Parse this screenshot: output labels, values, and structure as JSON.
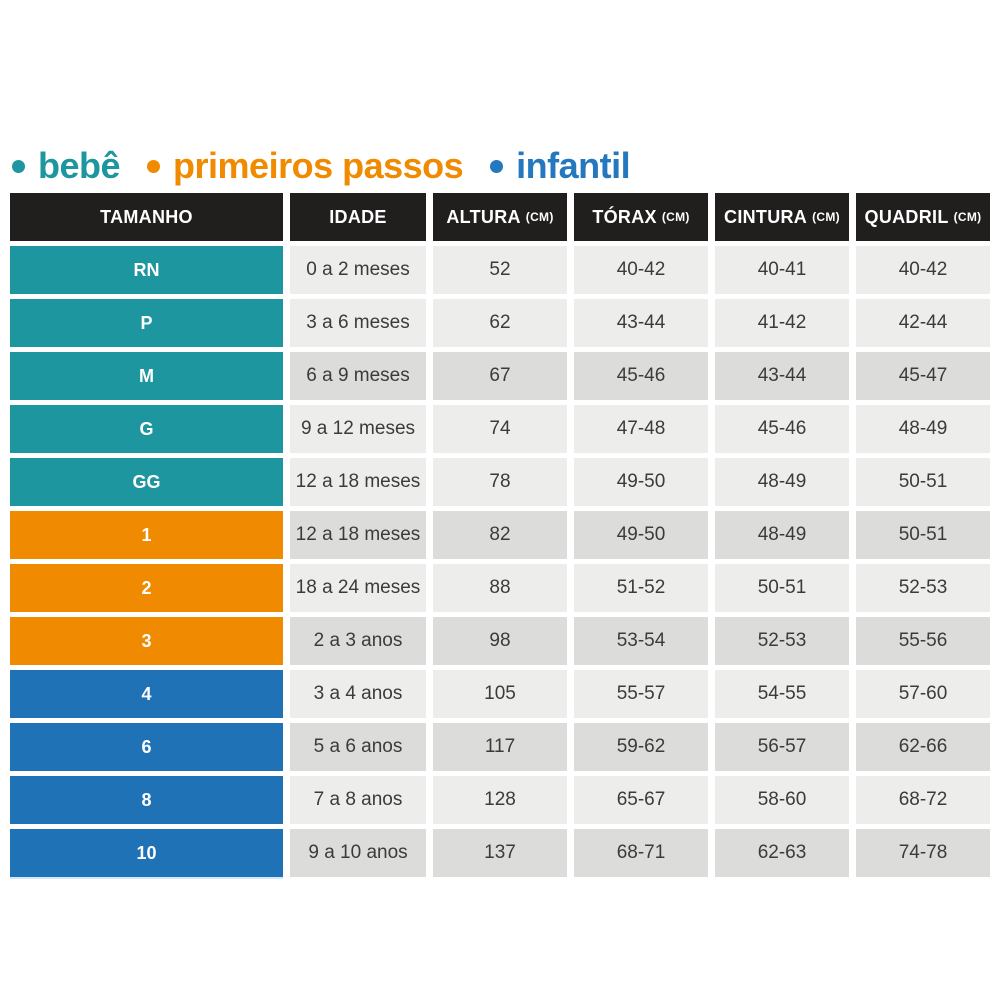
{
  "colors": {
    "teal": "#1E96A0",
    "orange": "#F08A00",
    "blue": "#1F72B5",
    "legend_blue": "#2478BE",
    "header_bg": "#211E1E",
    "row_light": "#EDEDEC",
    "row_dark": "#DCDCDB",
    "cell_text": "#3B3B3B"
  },
  "legend": {
    "items": [
      {
        "label": "bebê",
        "color": "#1E96A0"
      },
      {
        "label": "primeiros passos",
        "color": "#F08A00"
      },
      {
        "label": "infantil",
        "color": "#2478BE"
      }
    ]
  },
  "table": {
    "columns": [
      {
        "label": "TAMANHO",
        "unit": ""
      },
      {
        "label": "IDADE",
        "unit": ""
      },
      {
        "label": "ALTURA",
        "unit": "(CM)"
      },
      {
        "label": "TÓRAX",
        "unit": "(CM)"
      },
      {
        "label": "CINTURA",
        "unit": "(CM)"
      },
      {
        "label": "QUADRIL",
        "unit": "(CM)"
      }
    ],
    "rows": [
      {
        "size": "RN",
        "group": "bebê",
        "idade": "0 a 2 meses",
        "altura": "52",
        "torax": "40-42",
        "cintura": "40-41",
        "quadril": "40-42"
      },
      {
        "size": "P",
        "group": "bebê",
        "idade": "3 a 6 meses",
        "altura": "62",
        "torax": "43-44",
        "cintura": "41-42",
        "quadril": "42-44"
      },
      {
        "size": "M",
        "group": "bebê",
        "idade": "6 a 9 meses",
        "altura": "67",
        "torax": "45-46",
        "cintura": "43-44",
        "quadril": "45-47"
      },
      {
        "size": "G",
        "group": "bebê",
        "idade": "9 a 12 meses",
        "altura": "74",
        "torax": "47-48",
        "cintura": "45-46",
        "quadril": "48-49"
      },
      {
        "size": "GG",
        "group": "bebê",
        "idade": "12 a 18 meses",
        "altura": "78",
        "torax": "49-50",
        "cintura": "48-49",
        "quadril": "50-51"
      },
      {
        "size": "1",
        "group": "primeiros passos",
        "idade": "12 a 18 meses",
        "altura": "82",
        "torax": "49-50",
        "cintura": "48-49",
        "quadril": "50-51"
      },
      {
        "size": "2",
        "group": "primeiros passos",
        "idade": "18 a 24 meses",
        "altura": "88",
        "torax": "51-52",
        "cintura": "50-51",
        "quadril": "52-53"
      },
      {
        "size": "3",
        "group": "primeiros passos",
        "idade": "2 a 3 anos",
        "altura": "98",
        "torax": "53-54",
        "cintura": "52-53",
        "quadril": "55-56"
      },
      {
        "size": "4",
        "group": "infantil",
        "idade": "3 a 4 anos",
        "altura": "105",
        "torax": "55-57",
        "cintura": "54-55",
        "quadril": "57-60"
      },
      {
        "size": "6",
        "group": "infantil",
        "idade": "5 a 6 anos",
        "altura": "117",
        "torax": "59-62",
        "cintura": "56-57",
        "quadril": "62-66"
      },
      {
        "size": "8",
        "group": "infantil",
        "idade": "7 a 8 anos",
        "altura": "128",
        "torax": "65-67",
        "cintura": "58-60",
        "quadril": "68-72"
      },
      {
        "size": "10",
        "group": "infantil",
        "idade": "9 a 10 anos",
        "altura": "137",
        "torax": "68-71",
        "cintura": "62-63",
        "quadril": "74-78"
      }
    ]
  },
  "chart_data": {
    "type": "table",
    "title": "",
    "legend": [
      "bebê",
      "primeiros passos",
      "infantil"
    ],
    "columns": [
      "TAMANHO",
      "IDADE",
      "ALTURA (CM)",
      "TÓRAX (CM)",
      "CINTURA (CM)",
      "QUADRIL (CM)"
    ],
    "rows": [
      [
        "RN",
        "0 a 2 meses",
        "52",
        "40-42",
        "40-41",
        "40-42"
      ],
      [
        "P",
        "3 a 6 meses",
        "62",
        "43-44",
        "41-42",
        "42-44"
      ],
      [
        "M",
        "6 a 9 meses",
        "67",
        "45-46",
        "43-44",
        "45-47"
      ],
      [
        "G",
        "9 a 12 meses",
        "74",
        "47-48",
        "45-46",
        "48-49"
      ],
      [
        "GG",
        "12 a 18 meses",
        "78",
        "49-50",
        "48-49",
        "50-51"
      ],
      [
        "1",
        "12 a 18 meses",
        "82",
        "49-50",
        "48-49",
        "50-51"
      ],
      [
        "2",
        "18 a 24 meses",
        "88",
        "51-52",
        "50-51",
        "52-53"
      ],
      [
        "3",
        "2 a 3 anos",
        "98",
        "53-54",
        "52-53",
        "55-56"
      ],
      [
        "4",
        "3 a 4 anos",
        "105",
        "55-57",
        "54-55",
        "57-60"
      ],
      [
        "6",
        "5 a 6 anos",
        "117",
        "59-62",
        "56-57",
        "62-66"
      ],
      [
        "8",
        "7 a 8 anos",
        "128",
        "65-67",
        "58-60",
        "68-72"
      ],
      [
        "10",
        "9 a 10 anos",
        "137",
        "68-71",
        "62-63",
        "74-78"
      ]
    ],
    "row_groups": {
      "bebê": [
        "RN",
        "P",
        "M",
        "G",
        "GG"
      ],
      "primeiros passos": [
        "1",
        "2",
        "3"
      ],
      "infantil": [
        "4",
        "6",
        "8",
        "10"
      ]
    }
  }
}
